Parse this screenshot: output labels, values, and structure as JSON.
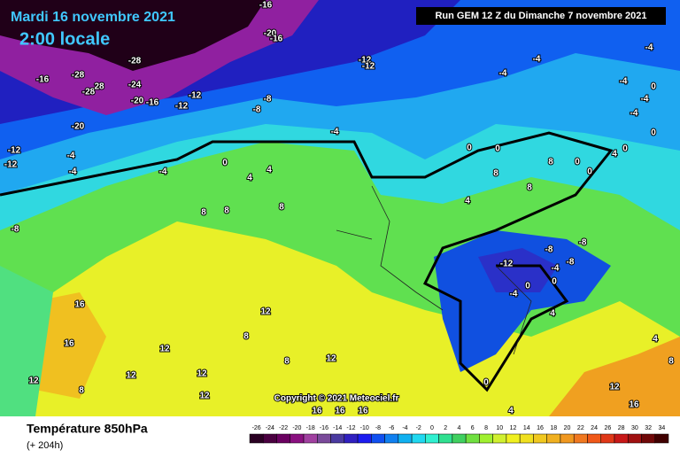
{
  "header": {
    "date": "Mardi 16 novembre 2021",
    "time": "2:00 locale",
    "run_info": "Run GEM 12 Z du Dimanche 7 novembre 2021"
  },
  "copyright": "Copyright © 2021 Meteociel.fr",
  "footer": {
    "title": "Température 850hPa",
    "range": "(+ 204h)"
  },
  "scale": {
    "labels": [
      -26,
      -24,
      -22,
      -20,
      -18,
      -16,
      -14,
      -12,
      -10,
      -8,
      -6,
      -4,
      -2,
      0,
      2,
      4,
      6,
      8,
      10,
      12,
      14,
      16,
      18,
      20,
      22,
      24,
      26,
      28,
      30,
      32,
      34
    ]
  },
  "map": {
    "labels": [
      -16,
      -20,
      -16,
      -28,
      -16,
      -28,
      -28,
      28,
      -24,
      -20,
      -16,
      -12,
      -12,
      -8,
      -8,
      -12,
      -12,
      -4,
      -4,
      -4,
      -20,
      -12,
      -12,
      -4,
      -4,
      -4,
      0,
      4,
      4,
      8,
      8,
      8,
      -8,
      16,
      16,
      12,
      12,
      12,
      8,
      12,
      8,
      8,
      12,
      12,
      12,
      16,
      16,
      16,
      -12,
      -8,
      -8,
      -4,
      -8,
      0,
      -4,
      0,
      4,
      8,
      8,
      0,
      0,
      0,
      0,
      4,
      4,
      8,
      12,
      16,
      4,
      0,
      4,
      8,
      -4,
      -4,
      0,
      -4,
      -4,
      0,
      0
    ]
  }
}
